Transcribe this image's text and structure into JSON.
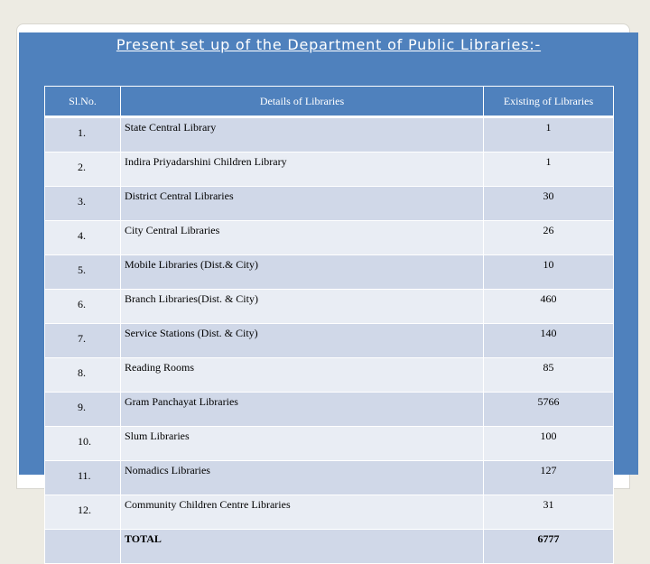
{
  "title": "Present set up of the Department of Public Libraries:-",
  "table": {
    "headers": [
      "Sl.No.",
      "Details of Libraries",
      "Existing of Libraries"
    ],
    "rows": [
      {
        "sl": "1.",
        "details": "State Central Library",
        "count": "1"
      },
      {
        "sl": "2.",
        "details": "Indira Priyadarshini Children Library",
        "count": "1"
      },
      {
        "sl": "3.",
        "details": "District Central Libraries",
        "count": "30"
      },
      {
        "sl": "4.",
        "details": "City Central Libraries",
        "count": "26"
      },
      {
        "sl": "5.",
        "details": "Mobile Libraries (Dist.& City)",
        "count": "10"
      },
      {
        "sl": "6.",
        "details": "Branch Libraries(Dist. & City)",
        "count": "460"
      },
      {
        "sl": "7.",
        "details": "Service Stations (Dist. & City)",
        "count": "140"
      },
      {
        "sl": "8.",
        "details": "Reading Rooms",
        "count": "85"
      },
      {
        "sl": "9.",
        "details": "Gram Panchayat Libraries",
        "count": "5766"
      },
      {
        "sl": "10.",
        "details": "Slum Libraries",
        "count": "100"
      },
      {
        "sl": "11.",
        "details": "Nomadics Libraries",
        "count": "127"
      },
      {
        "sl": "12.",
        "details": "Community Children Centre Libraries",
        "count": "31"
      }
    ],
    "total": {
      "label": "TOTAL",
      "count": "6777"
    }
  },
  "colors": {
    "slide_background": "#4f81bd",
    "header_background": "#4f81bd",
    "row_odd": "#d0d8e8",
    "row_even": "#e9edf4"
  }
}
